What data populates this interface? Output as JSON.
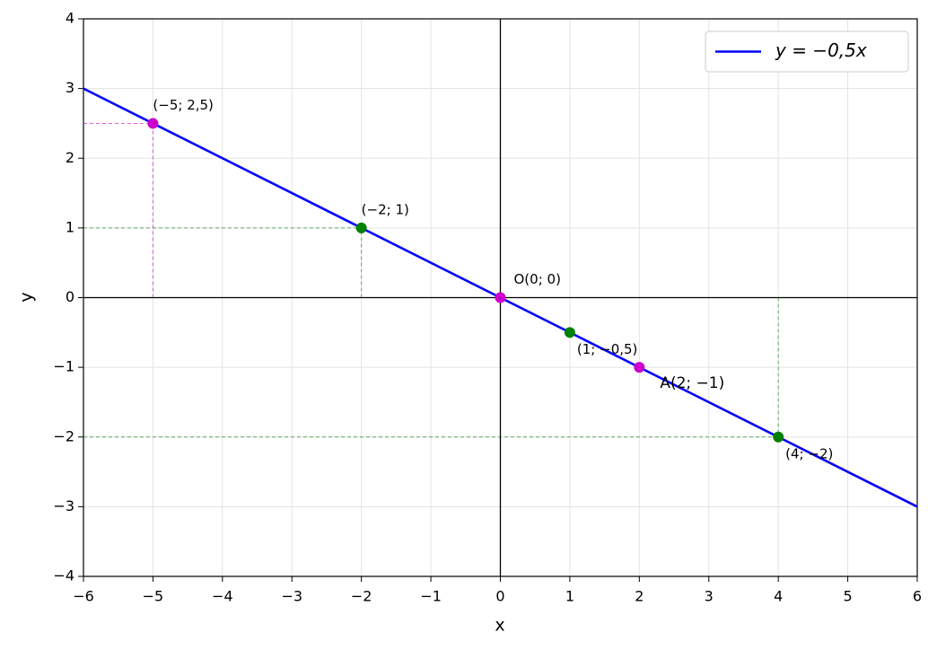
{
  "chart_data": {
    "type": "line",
    "xlabel": "x",
    "ylabel": "y",
    "xlim": [
      -6,
      6
    ],
    "ylim": [
      -4,
      4
    ],
    "xticks": [
      {
        "value": -6,
        "label": "−6"
      },
      {
        "value": -5,
        "label": "−5"
      },
      {
        "value": -4,
        "label": "−4"
      },
      {
        "value": -3,
        "label": "−3"
      },
      {
        "value": -2,
        "label": "−2"
      },
      {
        "value": -1,
        "label": "−1"
      },
      0,
      1,
      2,
      3,
      4,
      5,
      6
    ],
    "yticks": [
      {
        "value": -4,
        "label": "−4"
      },
      {
        "value": -3,
        "label": "−3"
      },
      {
        "value": -2,
        "label": "−2"
      },
      {
        "value": -1,
        "label": "−1"
      },
      0,
      1,
      2,
      3,
      4
    ],
    "grid": true,
    "legend": "upper right",
    "series": [
      {
        "name": "y = −0,5x",
        "color": "#0000ff",
        "x": [
          -6,
          6
        ],
        "values": [
          3,
          -3
        ]
      }
    ],
    "points": [
      {
        "x": -5,
        "y": 2.5,
        "label": "(−5; 2,5)",
        "color": "#cc00cc",
        "label_color": "#800080",
        "guides": true
      },
      {
        "x": -2,
        "y": 1,
        "label": "(−2; 1)",
        "color": "#008000",
        "label_color": "#008000",
        "guides": true
      },
      {
        "x": 0,
        "y": 0,
        "label": "O(0; 0)",
        "color": "#cc00cc",
        "label_color": "#800080",
        "guides": false
      },
      {
        "x": 1,
        "y": -0.5,
        "label": "(1; −0,5)",
        "color": "#008000",
        "label_color": "#008000",
        "guides": false
      },
      {
        "x": 2,
        "y": -1,
        "label": "A(2; −1)",
        "color": "#cc00cc",
        "label_color": "#000000",
        "guides": false
      },
      {
        "x": 4,
        "y": -2,
        "label": "(4; −2)",
        "color": "#008000",
        "label_color": "#008000",
        "guides": true
      }
    ]
  }
}
